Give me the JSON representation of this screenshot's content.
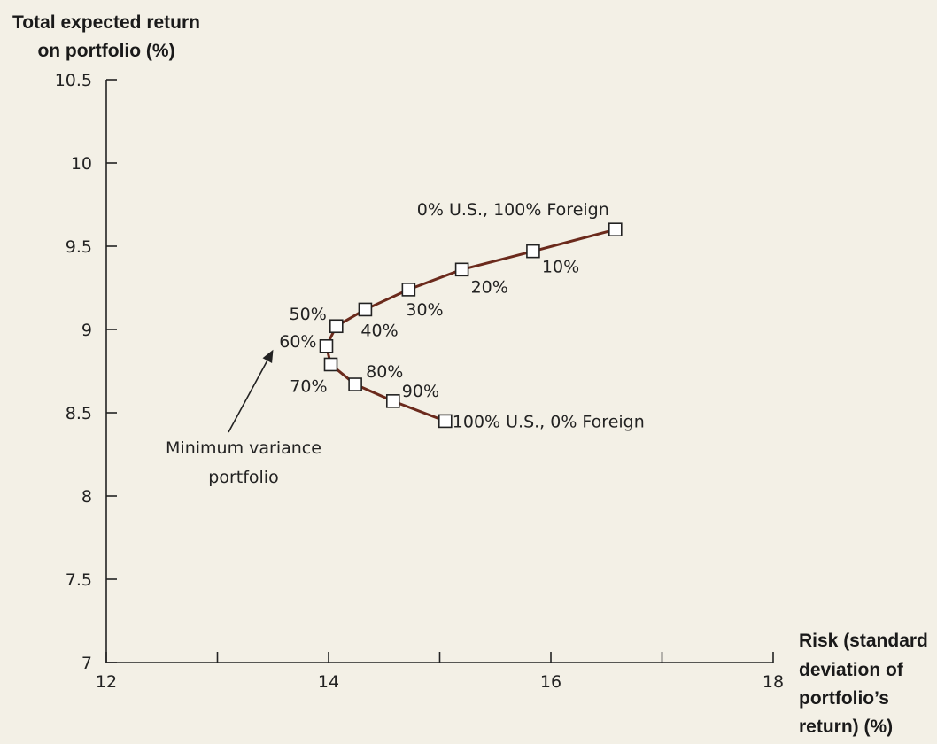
{
  "chart_data": {
    "type": "line",
    "title": "",
    "ylabel": [
      "Total expected return",
      "on portfolio (%)"
    ],
    "xlabel": [
      "Risk (standard",
      "deviation of",
      "portfolio’s",
      "return) (%)"
    ],
    "xlim": [
      12,
      18
    ],
    "ylim": [
      7,
      10.5
    ],
    "x_ticks": [
      12,
      13,
      14,
      15,
      16,
      17,
      18
    ],
    "x_tick_labels": [
      "12",
      "",
      "14",
      "",
      "16",
      "",
      "18"
    ],
    "y_ticks": [
      7,
      7.5,
      8,
      8.5,
      9,
      9.5,
      10,
      10.5
    ],
    "y_tick_labels": [
      "7",
      "7.5",
      "8",
      "8.5",
      "9",
      "9.5",
      "10",
      "10.5"
    ],
    "line_color": "#6b2a1c",
    "series": [
      {
        "points": [
          {
            "x": 16.58,
            "y": 9.6,
            "label": "0% U.S., 100% Foreign"
          },
          {
            "x": 15.84,
            "y": 9.47,
            "label": "10%"
          },
          {
            "x": 15.2,
            "y": 9.36,
            "label": "20%"
          },
          {
            "x": 14.72,
            "y": 9.24,
            "label": "30%"
          },
          {
            "x": 14.33,
            "y": 9.12,
            "label": "40%"
          },
          {
            "x": 14.07,
            "y": 9.02,
            "label": "50%"
          },
          {
            "x": 13.98,
            "y": 8.9,
            "label": "60%"
          },
          {
            "x": 14.02,
            "y": 8.79,
            "label": "70%"
          },
          {
            "x": 14.24,
            "y": 8.67,
            "label": "80%"
          },
          {
            "x": 14.58,
            "y": 8.57,
            "label": "90%"
          },
          {
            "x": 15.05,
            "y": 8.45,
            "label": "100% U.S., 0% Foreign"
          }
        ]
      }
    ],
    "annotations": [
      {
        "text": [
          "Minimum variance",
          "portfolio"
        ],
        "points_to": {
          "x": 13.98,
          "y": 8.9
        }
      }
    ]
  }
}
